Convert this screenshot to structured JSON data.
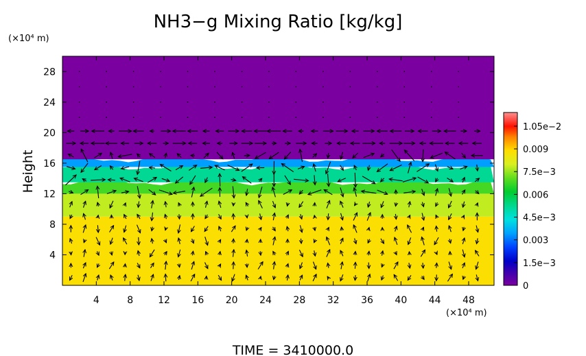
{
  "chart_data": {
    "type": "heatmap",
    "title": "NH3−g Mixing Ratio [kg/kg]",
    "ylabel": "Height",
    "y_unit": "(×10⁴ m)",
    "x_unit": "(×10⁴ m)",
    "x_ticks": [
      4,
      8,
      12,
      16,
      20,
      24,
      28,
      32,
      36,
      40,
      44,
      48
    ],
    "y_ticks": [
      4,
      8,
      12,
      16,
      20,
      24,
      28
    ],
    "xlim": [
      0,
      51
    ],
    "ylim": [
      0,
      30
    ],
    "colorbar": {
      "min": 0,
      "max": 0.0114,
      "tick_values": [
        0,
        0.0015,
        0.003,
        0.0045,
        0.006,
        0.0075,
        0.009,
        0.0105
      ],
      "tick_labels": [
        "0",
        "1.5e−3",
        "0.003",
        "4.5e−3",
        "0.006",
        "7.5e−3",
        "0.009",
        "1.05e−2"
      ]
    },
    "layers": [
      {
        "from": 0,
        "to": 9,
        "value": 0.0088
      },
      {
        "from": 9,
        "to": 12,
        "value": 0.0078
      },
      {
        "from": 12,
        "to": 13.5,
        "value": 0.0068
      },
      {
        "from": 13.5,
        "to": 15.5,
        "value": 0.0052
      },
      {
        "from": 15.5,
        "to": 16.5,
        "value": 0.0034
      },
      {
        "from": 16.5,
        "to": 30,
        "value": 0.0
      }
    ],
    "vectors": "wind field arrows (quiver) overlaid on the field",
    "footer": "TIME  =  3410000.0"
  }
}
